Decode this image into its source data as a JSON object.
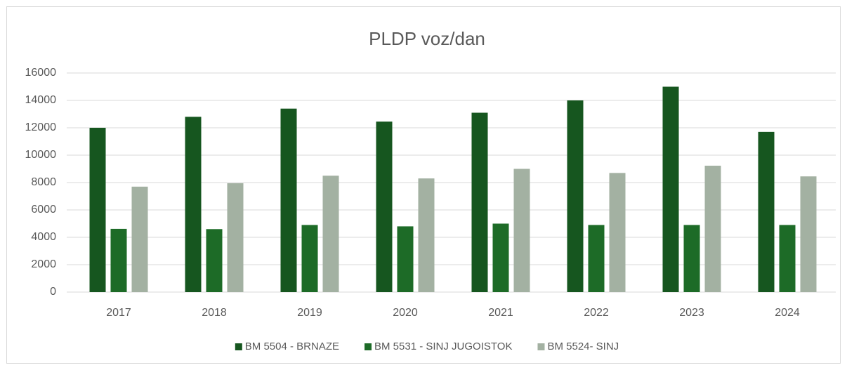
{
  "chart_data": {
    "type": "bar",
    "title": "PLDP voz/dan",
    "categories": [
      "2017",
      "2018",
      "2019",
      "2020",
      "2021",
      "2022",
      "2023",
      "2024"
    ],
    "series": [
      {
        "name": "BM 5504 - BRNAZE",
        "color": "#16561f",
        "values": [
          12000,
          12800,
          13400,
          12450,
          13100,
          14000,
          15000,
          11700
        ]
      },
      {
        "name": "BM 5531 - SINJ JUGOISTOK",
        "color": "#1d6b27",
        "values": [
          4620,
          4600,
          4900,
          4800,
          5000,
          4900,
          4900,
          4900
        ]
      },
      {
        "name": "BM 5524- SINJ",
        "color": "#a3b1a2",
        "values": [
          7700,
          7950,
          8500,
          8300,
          9000,
          8700,
          9230,
          8450
        ]
      }
    ],
    "ylim": [
      0,
      16000
    ],
    "yticks": [
      0,
      2000,
      4000,
      6000,
      8000,
      10000,
      12000,
      14000,
      16000
    ],
    "grid": true,
    "legend": "bottom"
  }
}
